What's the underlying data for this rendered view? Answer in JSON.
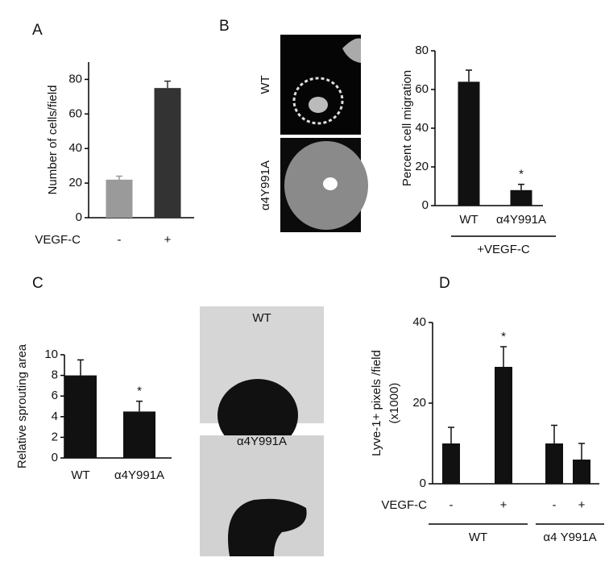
{
  "chart_data": [
    {
      "type": "bar",
      "panel": "A",
      "ylabel": "Number of cells/field",
      "row_label": "VEGF-C",
      "categories": [
        "-",
        "+"
      ],
      "values": [
        22,
        75
      ],
      "errors": [
        2,
        4
      ],
      "colors": [
        "#9a9a9a",
        "#333333"
      ],
      "ylim": [
        0,
        90
      ],
      "yticks": [
        0,
        20,
        40,
        60,
        80
      ]
    },
    {
      "type": "bar",
      "panel": "B",
      "ylabel": "Percent cell migration",
      "image_labels": [
        "WT",
        "α4Y991A"
      ],
      "categories": [
        "WT",
        "α4Y991A"
      ],
      "values": [
        64,
        8
      ],
      "errors": [
        6,
        3
      ],
      "color": "#111111",
      "ylim": [
        0,
        80
      ],
      "yticks": [
        0,
        20,
        40,
        60,
        80
      ],
      "annotations": [
        {
          "text": "*",
          "index": 1
        }
      ],
      "group_labels": [
        "+VEGF-C"
      ]
    },
    {
      "type": "bar",
      "panel": "C",
      "ylabel": "Relative sprouting area",
      "image_labels": [
        "WT",
        "α4Y991A"
      ],
      "categories": [
        "WT",
        "α4Y991A"
      ],
      "values": [
        8,
        4.5
      ],
      "errors": [
        1.5,
        1.0
      ],
      "color": "#111111",
      "ylim": [
        0,
        10
      ],
      "yticks": [
        0,
        2,
        4,
        6,
        8,
        10
      ],
      "annotations": [
        {
          "text": "*",
          "index": 1
        }
      ]
    },
    {
      "type": "bar",
      "panel": "D",
      "ylabel": "Lyve-1+ pixels /field",
      "ylabel2": "(x1000)",
      "row_label": "VEGF-C",
      "categories": [
        "-",
        "+",
        "-",
        "+"
      ],
      "values": [
        10,
        29,
        10,
        6
      ],
      "errors": [
        4,
        5,
        4.5,
        4
      ],
      "color": "#111111",
      "ylim": [
        0,
        40
      ],
      "yticks": [
        0,
        20,
        40
      ],
      "annotations": [
        {
          "text": "*",
          "index": 1
        }
      ],
      "group_labels": [
        "WT",
        "α4 Y991A"
      ]
    }
  ]
}
